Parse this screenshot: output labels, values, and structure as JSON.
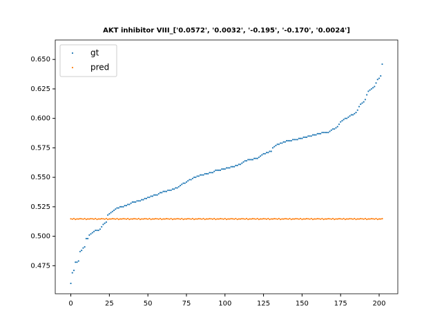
{
  "chart_data": {
    "type": "scatter",
    "title": "AKT inhibitor VIII_['0.0572', '0.0032', '-0.195', '-0.170', '0.0024']",
    "x": [
      0,
      1,
      2,
      3,
      4,
      5,
      6,
      7,
      8,
      9,
      10,
      11,
      12,
      13,
      14,
      15,
      16,
      17,
      18,
      19,
      20,
      21,
      22,
      23,
      24,
      25,
      26,
      27,
      28,
      29,
      30,
      31,
      32,
      33,
      34,
      35,
      36,
      37,
      38,
      39,
      40,
      41,
      42,
      43,
      44,
      45,
      46,
      47,
      48,
      49,
      50,
      51,
      52,
      53,
      54,
      55,
      56,
      57,
      58,
      59,
      60,
      61,
      62,
      63,
      64,
      65,
      66,
      67,
      68,
      69,
      70,
      71,
      72,
      73,
      74,
      75,
      76,
      77,
      78,
      79,
      80,
      81,
      82,
      83,
      84,
      85,
      86,
      87,
      88,
      89,
      90,
      91,
      92,
      93,
      94,
      95,
      96,
      97,
      98,
      99,
      100,
      101,
      102,
      103,
      104,
      105,
      106,
      107,
      108,
      109,
      110,
      111,
      112,
      113,
      114,
      115,
      116,
      117,
      118,
      119,
      120,
      121,
      122,
      123,
      124,
      125,
      126,
      127,
      128,
      129,
      130,
      131,
      132,
      133,
      134,
      135,
      136,
      137,
      138,
      139,
      140,
      141,
      142,
      143,
      144,
      145,
      146,
      147,
      148,
      149,
      150,
      151,
      152,
      153,
      154,
      155,
      156,
      157,
      158,
      159,
      160,
      161,
      162,
      163,
      164,
      165,
      166,
      167,
      168,
      169,
      170,
      171,
      172,
      173,
      174,
      175,
      176,
      177,
      178,
      179,
      180,
      181,
      182,
      183,
      184,
      185,
      186,
      187,
      188,
      189,
      190,
      191,
      192,
      193,
      194,
      195,
      196,
      197,
      198,
      199,
      200,
      201,
      202
    ],
    "series": [
      {
        "name": "gt",
        "color": "#1f77b4",
        "values": [
          0.46,
          0.469,
          0.471,
          0.478,
          0.478,
          0.479,
          0.487,
          0.488,
          0.49,
          0.491,
          0.498,
          0.498,
          0.501,
          0.502,
          0.503,
          0.504,
          0.505,
          0.505,
          0.505,
          0.506,
          0.508,
          0.51,
          0.511,
          0.512,
          0.518,
          0.519,
          0.52,
          0.521,
          0.522,
          0.523,
          0.524,
          0.524,
          0.525,
          0.525,
          0.525,
          0.526,
          0.526,
          0.527,
          0.527,
          0.528,
          0.529,
          0.529,
          0.529,
          0.53,
          0.53,
          0.53,
          0.531,
          0.531,
          0.532,
          0.532,
          0.533,
          0.533,
          0.534,
          0.534,
          0.535,
          0.535,
          0.535,
          0.536,
          0.537,
          0.537,
          0.538,
          0.538,
          0.538,
          0.539,
          0.539,
          0.539,
          0.54,
          0.54,
          0.541,
          0.541,
          0.542,
          0.543,
          0.544,
          0.545,
          0.545,
          0.546,
          0.547,
          0.548,
          0.548,
          0.549,
          0.55,
          0.55,
          0.551,
          0.551,
          0.552,
          0.552,
          0.552,
          0.553,
          0.553,
          0.553,
          0.554,
          0.554,
          0.554,
          0.555,
          0.556,
          0.556,
          0.556,
          0.556,
          0.557,
          0.557,
          0.557,
          0.558,
          0.558,
          0.558,
          0.559,
          0.559,
          0.559,
          0.56,
          0.56,
          0.561,
          0.561,
          0.562,
          0.563,
          0.564,
          0.564,
          0.565,
          0.565,
          0.565,
          0.565,
          0.566,
          0.566,
          0.566,
          0.567,
          0.568,
          0.569,
          0.57,
          0.57,
          0.571,
          0.571,
          0.572,
          0.572,
          0.575,
          0.576,
          0.577,
          0.578,
          0.578,
          0.579,
          0.579,
          0.58,
          0.58,
          0.581,
          0.581,
          0.581,
          0.581,
          0.582,
          0.582,
          0.582,
          0.582,
          0.583,
          0.583,
          0.583,
          0.584,
          0.584,
          0.584,
          0.585,
          0.585,
          0.585,
          0.586,
          0.586,
          0.586,
          0.587,
          0.587,
          0.587,
          0.588,
          0.588,
          0.588,
          0.588,
          0.588,
          0.589,
          0.59,
          0.591,
          0.591,
          0.592,
          0.593,
          0.595,
          0.597,
          0.598,
          0.599,
          0.6,
          0.6,
          0.601,
          0.602,
          0.603,
          0.603,
          0.604,
          0.605,
          0.607,
          0.61,
          0.612,
          0.613,
          0.614,
          0.616,
          0.62,
          0.623,
          0.624,
          0.625,
          0.626,
          0.627,
          0.63,
          0.633,
          0.634,
          0.636,
          0.646
        ]
      },
      {
        "name": "pred",
        "color": "#ff7f0e",
        "values": [
          0.5148,
          0.5145,
          0.515,
          0.5143,
          0.5147,
          0.5146,
          0.5149,
          0.5148,
          0.5145,
          0.515,
          0.5143,
          0.5147,
          0.5146,
          0.5149,
          0.5148,
          0.5145,
          0.515,
          0.5143,
          0.5147,
          0.5146,
          0.5149,
          0.5148,
          0.5145,
          0.515,
          0.5143,
          0.5147,
          0.5146,
          0.5149,
          0.5148,
          0.5145,
          0.515,
          0.5143,
          0.5147,
          0.5146,
          0.5149,
          0.5148,
          0.5145,
          0.515,
          0.5143,
          0.5147,
          0.5146,
          0.5149,
          0.5148,
          0.5145,
          0.515,
          0.5143,
          0.5147,
          0.5146,
          0.5149,
          0.5148,
          0.5145,
          0.515,
          0.5143,
          0.5147,
          0.5146,
          0.5149,
          0.5148,
          0.5145,
          0.515,
          0.5143,
          0.5147,
          0.5146,
          0.5149,
          0.5148,
          0.5145,
          0.515,
          0.5143,
          0.5147,
          0.5146,
          0.5149,
          0.5148,
          0.5145,
          0.515,
          0.5143,
          0.5147,
          0.5146,
          0.5149,
          0.5148,
          0.5145,
          0.515,
          0.5143,
          0.5147,
          0.5146,
          0.5149,
          0.5148,
          0.5145,
          0.515,
          0.5143,
          0.5147,
          0.5146,
          0.5149,
          0.5148,
          0.5145,
          0.515,
          0.5143,
          0.5147,
          0.5146,
          0.5149,
          0.5148,
          0.5145,
          0.515,
          0.5143,
          0.5147,
          0.5146,
          0.5149,
          0.5148,
          0.5145,
          0.515,
          0.5143,
          0.5147,
          0.5146,
          0.5149,
          0.5148,
          0.5145,
          0.515,
          0.5143,
          0.5147,
          0.5146,
          0.5149,
          0.5148,
          0.5145,
          0.515,
          0.5143,
          0.5147,
          0.5146,
          0.5149,
          0.5148,
          0.5145,
          0.515,
          0.5143,
          0.5147,
          0.5146,
          0.5149,
          0.5148,
          0.5145,
          0.515,
          0.5143,
          0.5147,
          0.5146,
          0.5149,
          0.5148,
          0.5145,
          0.515,
          0.5143,
          0.5147,
          0.5146,
          0.5149,
          0.5148,
          0.5145,
          0.515,
          0.5143,
          0.5147,
          0.5146,
          0.5149,
          0.5148,
          0.5145,
          0.515,
          0.5143,
          0.5147,
          0.5146,
          0.5149,
          0.5148,
          0.5145,
          0.515,
          0.5143,
          0.5147,
          0.5146,
          0.5149,
          0.5148,
          0.5145,
          0.515,
          0.5143,
          0.5147,
          0.5146,
          0.5149,
          0.5148,
          0.5145,
          0.515,
          0.5143,
          0.5147,
          0.5146,
          0.5149,
          0.5148,
          0.5145,
          0.515,
          0.5143,
          0.5147,
          0.5146,
          0.5149,
          0.5148,
          0.5145,
          0.515,
          0.5143,
          0.5147,
          0.5146,
          0.5149,
          0.5148,
          0.5145,
          0.515,
          0.5143,
          0.5147,
          0.5146,
          0.5149
        ]
      }
    ],
    "xlim": [
      -10.1,
      212.1
    ],
    "xticks": [
      0,
      25,
      50,
      75,
      100,
      125,
      150,
      175,
      200
    ],
    "ylim": [
      0.4512,
      0.6665
    ],
    "yticks": [
      0.475,
      {
        "value": 0.5,
        "label": "0.500"
      },
      0.525,
      {
        "value": 0.55,
        "label": "0.550"
      },
      0.575,
      {
        "value": 0.6,
        "label": "0.600"
      },
      0.625,
      {
        "value": 0.65,
        "label": "0.650"
      }
    ],
    "legend": "upper left"
  }
}
